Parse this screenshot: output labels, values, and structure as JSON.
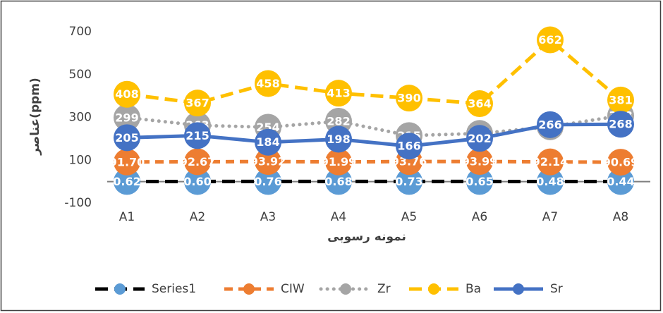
{
  "chart_data": {
    "type": "line",
    "y_label": "عناصر(ppm)",
    "x_label": "نمونه رسوبی",
    "categories": [
      "A1",
      "A2",
      "A3",
      "A4",
      "A5",
      "A6",
      "A7",
      "A8"
    ],
    "ylim": [
      -100,
      700
    ],
    "yticks": [
      -100,
      100,
      300,
      500,
      700
    ],
    "legend": "bottom",
    "series": [
      {
        "name": "Series1",
        "color": "#000000",
        "marker_color": "#5b9bd5",
        "dash": "long-dash",
        "values": [
          0.62,
          0.6,
          0.76,
          0.68,
          0.73,
          0.65,
          0.48,
          0.44
        ],
        "value_labels": [
          "0.62",
          "0.60",
          "0.76",
          "0.68",
          "0.73",
          "0.65",
          "0.48",
          "0.44"
        ]
      },
      {
        "name": "CIW",
        "color": "#ed7d31",
        "marker_color": "#ed7d31",
        "dash": "dash",
        "values": [
          91.7,
          92.67,
          93.92,
          91.99,
          93.76,
          93.99,
          92.14,
          90.69
        ],
        "value_labels": [
          "91.70",
          "92.67",
          "93.92",
          "91.99",
          "93.76",
          "93.99",
          "92.14",
          "90.69"
        ]
      },
      {
        "name": "Zr",
        "color": "#a5a5a5",
        "marker_color": "#a5a5a5",
        "dash": "dot",
        "values": [
          299,
          263,
          254,
          282,
          215,
          225,
          256,
          308
        ]
      },
      {
        "name": "Ba",
        "color": "#ffc000",
        "marker_color": "#ffc000",
        "dash": "long-dash",
        "values": [
          408,
          367,
          458,
          413,
          390,
          364,
          662,
          381
        ]
      },
      {
        "name": "Sr",
        "color": "#4472c4",
        "marker_color": "#4472c4",
        "dash": "solid",
        "values": [
          205,
          215,
          184,
          198,
          166,
          202,
          266,
          268
        ]
      }
    ]
  }
}
